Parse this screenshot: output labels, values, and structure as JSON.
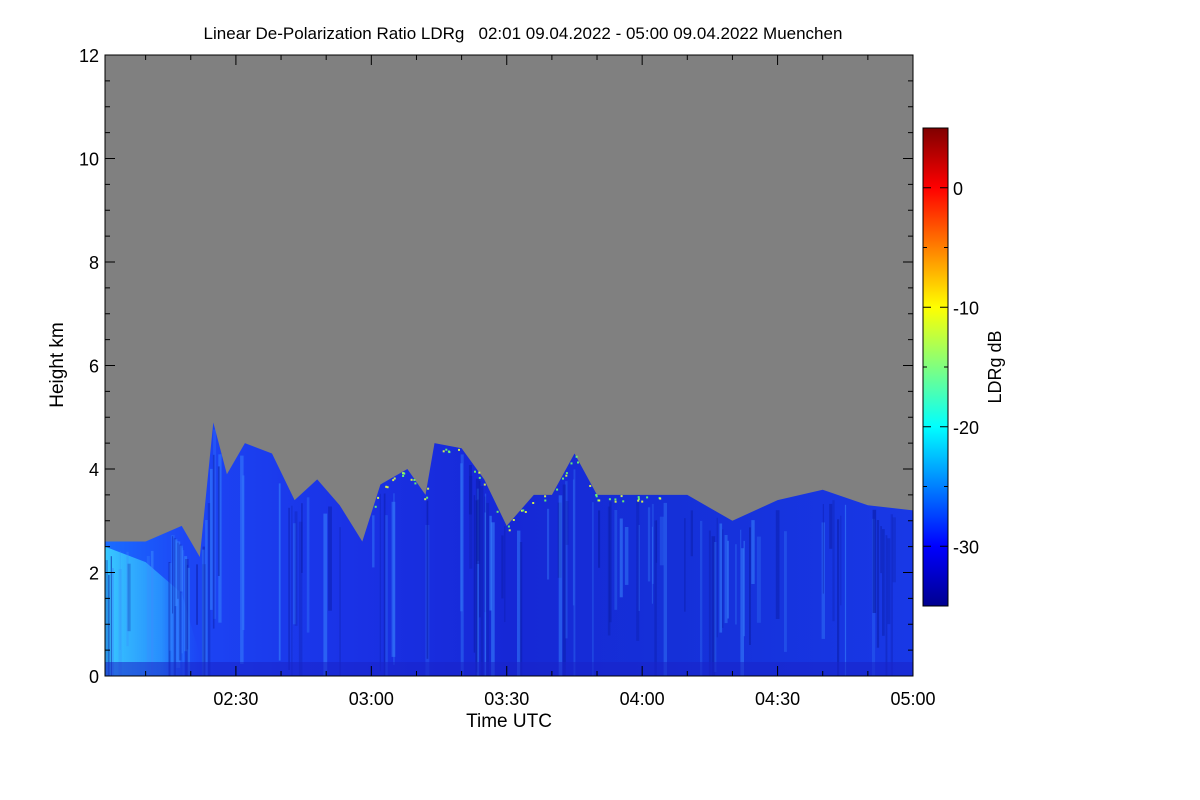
{
  "chart_data": {
    "type": "heatmap",
    "title": "Linear De-Polarization Ratio LDRg   02:01 09.04.2022 - 05:00 09.04.2022 Muenchen",
    "xlabel": "Time UTC",
    "ylabel": "Height km",
    "x_range": [
      "02:01",
      "05:00"
    ],
    "x_ticks": [
      "02:30",
      "03:00",
      "03:30",
      "04:00",
      "04:30",
      "05:00"
    ],
    "ylim": [
      0,
      12
    ],
    "y_ticks": [
      "0",
      "2",
      "4",
      "6",
      "8",
      "10",
      "12"
    ],
    "colorbar": {
      "label": "LDRg dB",
      "range": [
        -35,
        5
      ],
      "ticks": [
        "0",
        "-10",
        "-20",
        "-30"
      ],
      "colormap": "jet"
    },
    "no_signal_color": "#808080",
    "cloud_top_profile_km": [
      {
        "time": "02:01",
        "top": 2.6
      },
      {
        "time": "02:10",
        "top": 2.6
      },
      {
        "time": "02:18",
        "top": 2.9
      },
      {
        "time": "02:22",
        "top": 2.3
      },
      {
        "time": "02:25",
        "top": 4.9
      },
      {
        "time": "02:28",
        "top": 3.9
      },
      {
        "time": "02:32",
        "top": 4.5
      },
      {
        "time": "02:38",
        "top": 4.3
      },
      {
        "time": "02:43",
        "top": 3.4
      },
      {
        "time": "02:48",
        "top": 3.8
      },
      {
        "time": "02:53",
        "top": 3.3
      },
      {
        "time": "02:58",
        "top": 2.6
      },
      {
        "time": "03:02",
        "top": 3.7
      },
      {
        "time": "03:08",
        "top": 4.0
      },
      {
        "time": "03:12",
        "top": 3.5
      },
      {
        "time": "03:14",
        "top": 4.5
      },
      {
        "time": "03:20",
        "top": 4.4
      },
      {
        "time": "03:25",
        "top": 3.8
      },
      {
        "time": "03:30",
        "top": 2.9
      },
      {
        "time": "03:36",
        "top": 3.5
      },
      {
        "time": "03:40",
        "top": 3.5
      },
      {
        "time": "03:45",
        "top": 4.3
      },
      {
        "time": "03:50",
        "top": 3.5
      },
      {
        "time": "04:00",
        "top": 3.5
      },
      {
        "time": "04:10",
        "top": 3.5
      },
      {
        "time": "04:20",
        "top": 3.0
      },
      {
        "time": "04:30",
        "top": 3.4
      },
      {
        "time": "04:40",
        "top": 3.6
      },
      {
        "time": "04:50",
        "top": 3.3
      },
      {
        "time": "05:00",
        "top": 3.2
      }
    ]
  }
}
